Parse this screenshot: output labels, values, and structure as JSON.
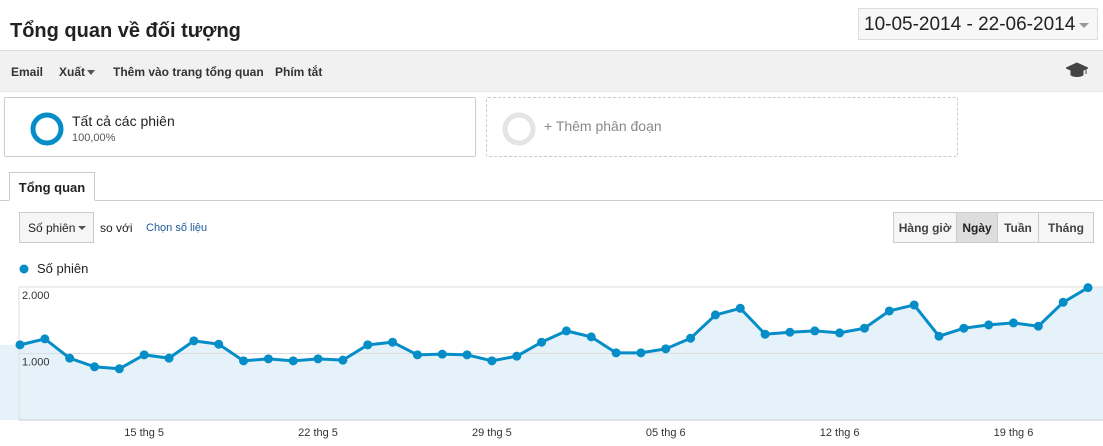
{
  "header": {
    "title": "Tổng quan về đối tượng",
    "date_range": "10-05-2014 - 22-06-2014"
  },
  "toolbar": [
    "Email",
    "Xuất",
    "Thêm vào trang tổng quan",
    "Phím tắt"
  ],
  "segments": [
    {
      "name": "Tất cả các phiên",
      "share": "100,00%"
    },
    {
      "name": "+ Thêm phân đoạn"
    }
  ],
  "tabs": [
    "Tổng quan"
  ],
  "controls": {
    "metric": "Số phiên",
    "compare": "so với",
    "choose": "Chọn số liệu",
    "granularity": [
      "Hàng giờ",
      "Ngày",
      "Tuần",
      "Tháng"
    ],
    "active": 1
  },
  "chart_data": {
    "type": "line",
    "categories": [
      null,
      null,
      null,
      null,
      null,
      "15 thg 5",
      null,
      null,
      null,
      null,
      null,
      null,
      "22 thg 5",
      null,
      null,
      null,
      null,
      null,
      null,
      "29 thg 5",
      null,
      null,
      null,
      null,
      null,
      null,
      "05 thg 6",
      null,
      null,
      null,
      null,
      null,
      null,
      "12 thg 6",
      null,
      null,
      null,
      null,
      null,
      null,
      "19 thg 6",
      null,
      null,
      null
    ],
    "series": [
      {
        "name": "Số phiên",
        "color": "#058dc7",
        "fill": "#e6f2f9",
        "values": [
          1130,
          1220,
          930,
          800,
          770,
          980,
          930,
          1190,
          1140,
          890,
          920,
          890,
          920,
          900,
          1130,
          1170,
          980,
          990,
          980,
          890,
          960,
          1170,
          1340,
          1250,
          1010,
          1010,
          1070,
          1230,
          1580,
          1680,
          1290,
          1320,
          1340,
          1310,
          1380,
          1640,
          1730,
          1260,
          1380,
          1430,
          1460,
          1410,
          1770,
          1990
        ]
      }
    ],
    "ylim": [
      0,
      2000
    ],
    "yticks": [
      {
        "value": 1000,
        "label": "1.000"
      },
      {
        "value": 2000,
        "label": "2.000"
      }
    ],
    "grid": true
  }
}
